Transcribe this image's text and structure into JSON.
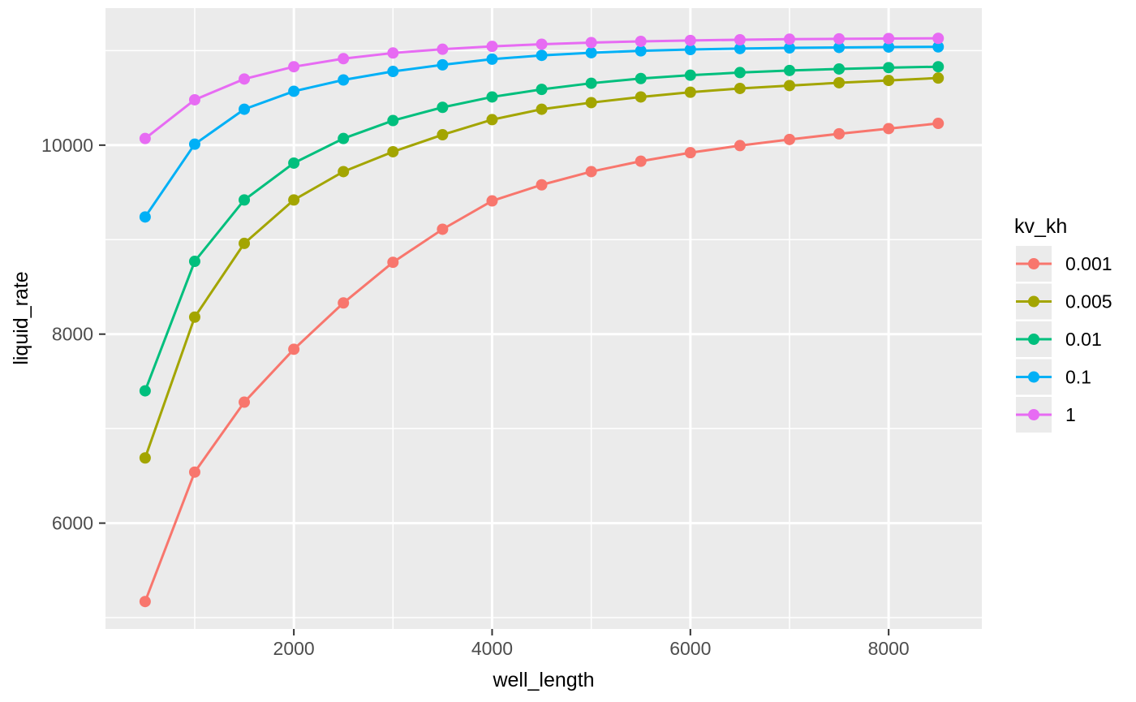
{
  "figure": {
    "background": "#FFFFFF",
    "panel_background": "#EBEBEB",
    "grid_color": "#FFFFFF",
    "tick_mark_color": "#333333",
    "tick_label_color": "#4D4D4D",
    "legend_key_background": "#EBEBEB"
  },
  "chart_data": {
    "type": "line",
    "title": "",
    "xlabel": "well_length",
    "ylabel": "liquid_rate",
    "legend_title": "kv_kh",
    "legend_position": "right",
    "grid": true,
    "xlim": [
      100,
      8940
    ],
    "ylim": [
      4880,
      11450
    ],
    "x_ticks": [
      2000,
      4000,
      6000,
      8000
    ],
    "x_minor_ticks": [
      1000,
      3000,
      5000,
      7000
    ],
    "y_ticks": [
      6000,
      8000,
      10000
    ],
    "y_minor_ticks": [
      5000,
      7000,
      9000,
      11000
    ],
    "x": [
      500,
      1000,
      1500,
      2000,
      2500,
      3000,
      3500,
      4000,
      4500,
      5000,
      5500,
      6000,
      6500,
      7000,
      7500,
      8000,
      8500
    ],
    "series": [
      {
        "name": "0.001",
        "color": "#F8766D",
        "values": [
          5170,
          6540,
          7280,
          7840,
          8330,
          8760,
          9110,
          9410,
          9580,
          9720,
          9830,
          9920,
          9995,
          10060,
          10120,
          10175,
          10230
        ]
      },
      {
        "name": "0.005",
        "color": "#A3A500",
        "values": [
          6690,
          8180,
          8960,
          9420,
          9720,
          9930,
          10110,
          10270,
          10380,
          10450,
          10510,
          10560,
          10600,
          10630,
          10660,
          10685,
          10710
        ]
      },
      {
        "name": "0.01",
        "color": "#00BF7D",
        "values": [
          7400,
          8770,
          9420,
          9810,
          10070,
          10260,
          10400,
          10510,
          10590,
          10655,
          10705,
          10740,
          10768,
          10790,
          10806,
          10820,
          10830
        ]
      },
      {
        "name": "0.1",
        "color": "#00B0F6",
        "values": [
          9240,
          10010,
          10380,
          10570,
          10690,
          10780,
          10850,
          10910,
          10950,
          10978,
          10998,
          11012,
          11022,
          11029,
          11034,
          11038,
          11040
        ]
      },
      {
        "name": "1",
        "color": "#E76BF3",
        "values": [
          10070,
          10480,
          10700,
          10830,
          10915,
          10975,
          11015,
          11045,
          11068,
          11085,
          11098,
          11108,
          11115,
          11121,
          11125,
          11128,
          11130
        ]
      }
    ]
  }
}
